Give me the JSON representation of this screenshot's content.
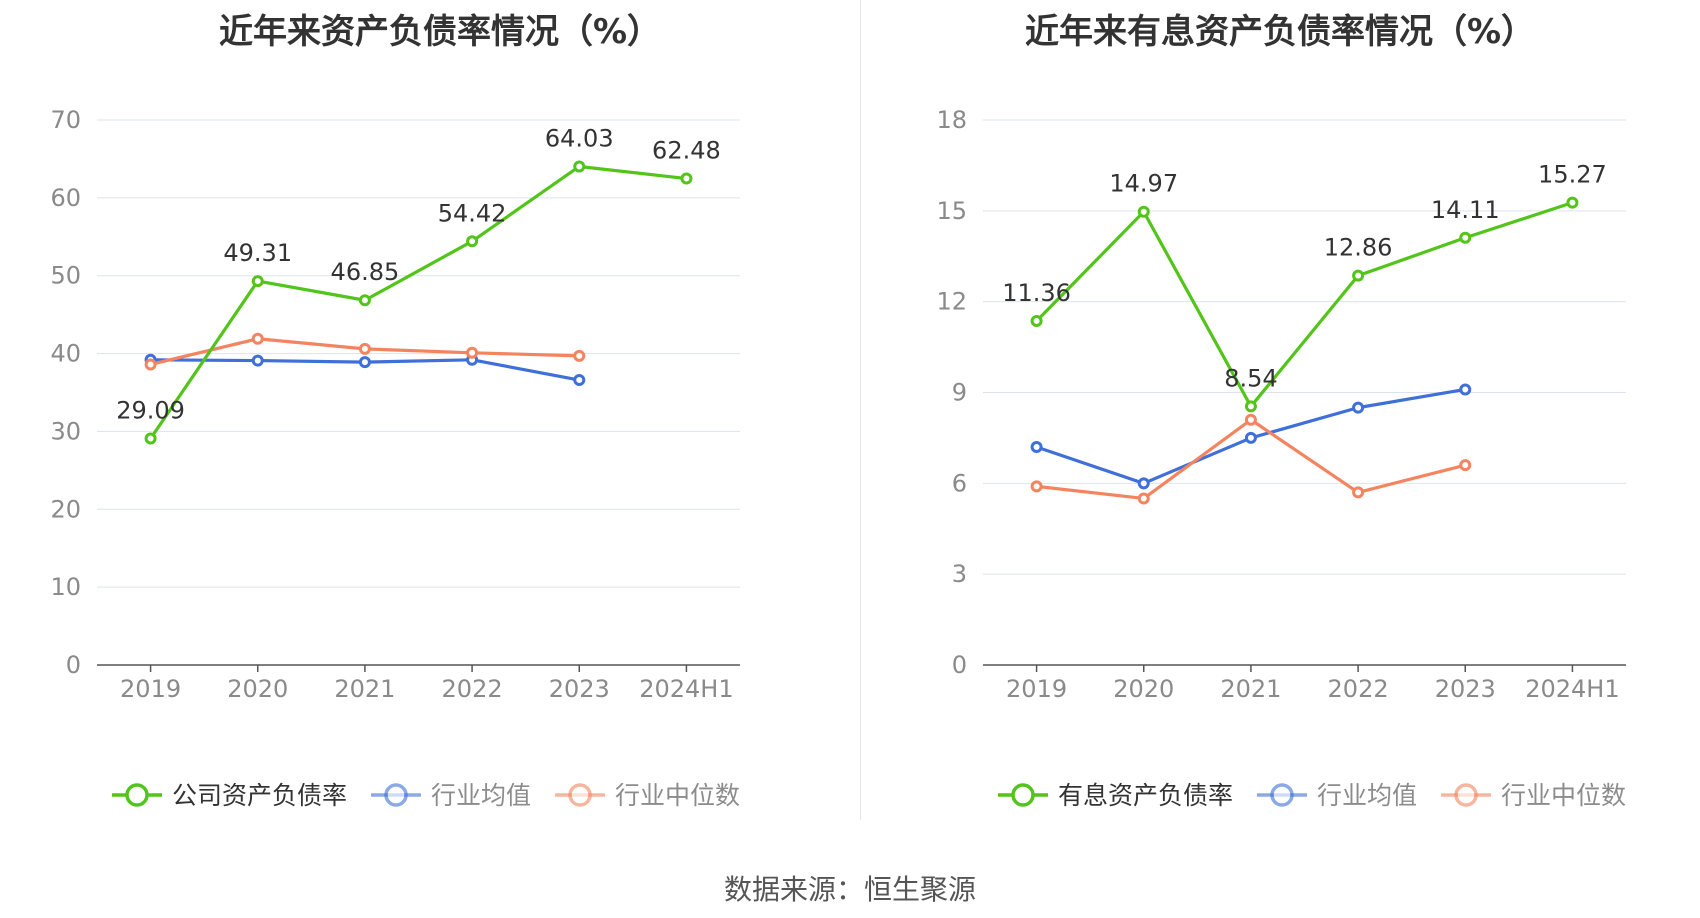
{
  "chart_data": [
    {
      "type": "line",
      "title": "近年来资产负债率情况（%）",
      "categories": [
        "2019",
        "2020",
        "2021",
        "2022",
        "2023",
        "2024H1"
      ],
      "ylim": [
        0,
        70
      ],
      "yticks": [
        0,
        10,
        20,
        30,
        40,
        50,
        60,
        70
      ],
      "legend_position": "bottom",
      "series": [
        {
          "name": "公司资产负债率",
          "color": "#52c41a",
          "labels": true,
          "values": [
            29.09,
            49.31,
            46.85,
            54.42,
            64.03,
            62.48
          ]
        },
        {
          "name": "行业均值",
          "color": "#3f6fd8",
          "labels": false,
          "values": [
            39.2,
            39.1,
            38.9,
            39.2,
            36.6,
            null
          ]
        },
        {
          "name": "行业中位数",
          "color": "#f4845f",
          "labels": false,
          "values": [
            38.6,
            41.9,
            40.6,
            40.1,
            39.7,
            null
          ]
        }
      ]
    },
    {
      "type": "line",
      "title": "近年来有息资产负债率情况（%）",
      "categories": [
        "2019",
        "2020",
        "2021",
        "2022",
        "2023",
        "2024H1"
      ],
      "ylim": [
        0,
        18
      ],
      "yticks": [
        0,
        3,
        6,
        9,
        12,
        15,
        18
      ],
      "legend_position": "bottom",
      "series": [
        {
          "name": "有息资产负债率",
          "color": "#52c41a",
          "labels": true,
          "values": [
            11.36,
            14.97,
            8.54,
            12.86,
            14.11,
            15.27
          ]
        },
        {
          "name": "行业均值",
          "color": "#3f6fd8",
          "labels": false,
          "values": [
            7.2,
            6.0,
            7.5,
            8.5,
            9.1,
            null
          ]
        },
        {
          "name": "行业中位数",
          "color": "#f4845f",
          "labels": false,
          "values": [
            5.9,
            5.5,
            8.1,
            5.7,
            6.6,
            null
          ]
        }
      ]
    }
  ],
  "source": "数据来源：恒生聚源"
}
